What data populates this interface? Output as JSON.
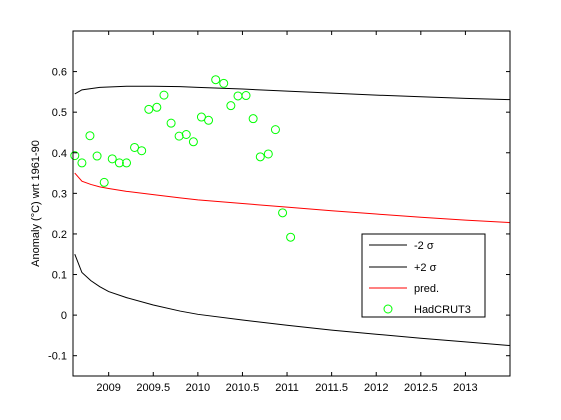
{
  "chart_data": {
    "type": "line",
    "title": "",
    "xlabel": "",
    "ylabel": "Anomaly (°C) wrt 1961-90",
    "xlim": [
      2008.6,
      2013.5
    ],
    "ylim": [
      -0.15,
      0.7
    ],
    "xticks": [
      2009,
      2009.5,
      2010,
      2010.5,
      2011,
      2011.5,
      2012,
      2012.5,
      2013
    ],
    "xtick_labels": [
      "2009",
      "2009.5",
      "2010",
      "2010.5",
      "2011",
      "2011.5",
      "2012",
      "2012.5",
      "2013"
    ],
    "yticks": [
      -0.1,
      0,
      0.1,
      0.2,
      0.3,
      0.4,
      0.5,
      0.6
    ],
    "ytick_labels": [
      "-0.1",
      "0",
      "0.1",
      "0.2",
      "0.3",
      "0.4",
      "0.5",
      "0.6"
    ],
    "grid": false,
    "legend_position": "bottom-right",
    "series": [
      {
        "name": "-2 σ",
        "color": "#000000",
        "style": "line",
        "x": [
          2008.62,
          2008.7,
          2008.8,
          2008.9,
          2009.0,
          2009.2,
          2009.5,
          2009.8,
          2010.0,
          2010.5,
          2011.0,
          2011.5,
          2012.0,
          2012.5,
          2013.0,
          2013.5
        ],
        "y": [
          0.15,
          0.105,
          0.085,
          0.07,
          0.058,
          0.043,
          0.025,
          0.01,
          0.002,
          -0.012,
          -0.025,
          -0.037,
          -0.047,
          -0.057,
          -0.066,
          -0.075
        ]
      },
      {
        "name": "+2 σ",
        "color": "#000000",
        "style": "line",
        "x": [
          2008.62,
          2008.7,
          2008.8,
          2008.9,
          2009.0,
          2009.2,
          2009.5,
          2009.8,
          2010.0,
          2010.5,
          2011.0,
          2011.5,
          2012.0,
          2012.5,
          2013.0,
          2013.5
        ],
        "y": [
          0.545,
          0.555,
          0.558,
          0.561,
          0.562,
          0.564,
          0.564,
          0.563,
          0.561,
          0.557,
          0.552,
          0.547,
          0.542,
          0.538,
          0.534,
          0.531
        ]
      },
      {
        "name": "pred.",
        "color": "#ff0000",
        "style": "line",
        "x": [
          2008.62,
          2008.7,
          2008.8,
          2008.9,
          2009.0,
          2009.2,
          2009.5,
          2009.8,
          2010.0,
          2010.5,
          2011.0,
          2011.5,
          2012.0,
          2012.5,
          2013.0,
          2013.5
        ],
        "y": [
          0.35,
          0.33,
          0.322,
          0.316,
          0.312,
          0.305,
          0.297,
          0.289,
          0.284,
          0.275,
          0.266,
          0.257,
          0.249,
          0.241,
          0.234,
          0.228
        ]
      },
      {
        "name": "HadCRUT3",
        "color": "#00ff00",
        "style": "marker",
        "x": [
          2008.62,
          2008.7,
          2008.79,
          2008.87,
          2008.95,
          2009.04,
          2009.12,
          2009.2,
          2009.29,
          2009.37,
          2009.45,
          2009.54,
          2009.62,
          2009.7,
          2009.79,
          2009.87,
          2009.95,
          2010.04,
          2010.12,
          2010.2,
          2010.29,
          2010.37,
          2010.45,
          2010.54,
          2010.62,
          2010.7,
          2010.79,
          2010.87,
          2010.95,
          2011.04
        ],
        "y": [
          0.393,
          0.375,
          0.442,
          0.392,
          0.327,
          0.385,
          0.375,
          0.375,
          0.413,
          0.405,
          0.507,
          0.512,
          0.542,
          0.473,
          0.441,
          0.445,
          0.427,
          0.488,
          0.48,
          0.58,
          0.571,
          0.516,
          0.54,
          0.541,
          0.484,
          0.39,
          0.397,
          0.457,
          0.252,
          0.192
        ]
      }
    ]
  }
}
